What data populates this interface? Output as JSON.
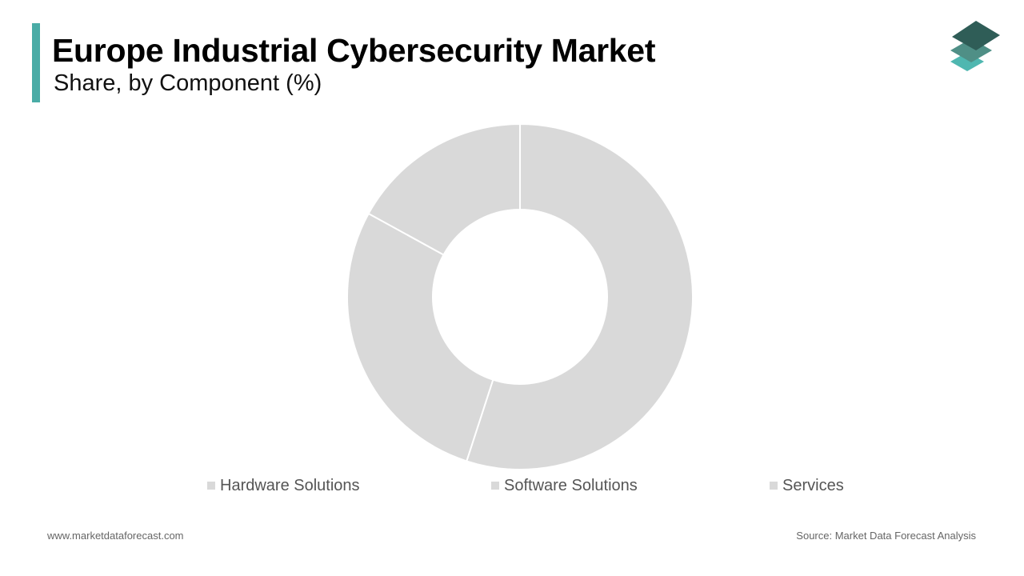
{
  "header": {
    "title": "Europe Industrial Cybersecurity Market",
    "subtitle": "Share, by Component (%)"
  },
  "logo": {
    "icon": "stacked-layers-logo-icon",
    "colors": [
      "#2f5d57",
      "#4f8f86",
      "#4fb7b0"
    ]
  },
  "colors": {
    "accent": "#4aaca6",
    "slice": "#d9d9d9",
    "legend_swatch": "#d9d9d9",
    "separator": "#ffffff"
  },
  "chart_data": {
    "type": "pie",
    "donut": true,
    "title": "Europe Industrial Cybersecurity Market",
    "subtitle": "Share, by Component (%)",
    "categories": [
      "Hardware Solutions",
      "Software Solutions",
      "Services"
    ],
    "values": [
      55,
      28,
      17
    ],
    "start": "top",
    "direction": "clockwise",
    "legend_position": "bottom"
  },
  "legend": {
    "items": [
      {
        "label": "Hardware Solutions"
      },
      {
        "label": "Software Solutions"
      },
      {
        "label": "Services"
      }
    ]
  },
  "footer": {
    "website": "www.marketdataforecast.com",
    "source": "Source: Market Data Forecast Analysis"
  }
}
